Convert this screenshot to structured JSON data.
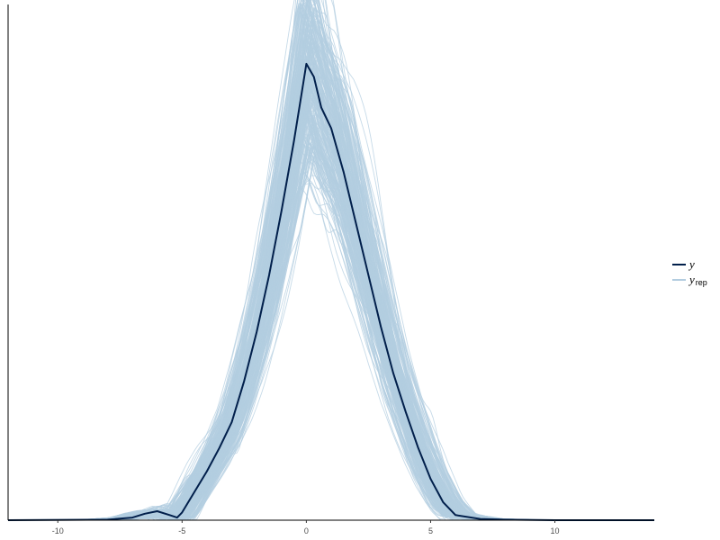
{
  "chart_data": {
    "type": "line",
    "title": "",
    "xlabel": "",
    "ylabel": "",
    "xlim": [
      -12,
      14
    ],
    "ylim": [
      0,
      0.2
    ],
    "x_ticks": [
      -10,
      -5,
      0,
      5,
      10
    ],
    "x_tick_labels": [
      "-10",
      "-5",
      "0",
      "5",
      "10"
    ],
    "y_ticks_shown": false,
    "grid": false,
    "legend_position": "right",
    "series": [
      {
        "name": "y",
        "color": "#011f4b",
        "x": [
          -12,
          -8,
          -7,
          -6.5,
          -6,
          -5.5,
          -5.2,
          -5,
          -4.5,
          -4,
          -3.5,
          -3,
          -2.5,
          -2,
          -1.5,
          -1,
          -0.5,
          -0.2,
          0,
          0.3,
          0.6,
          1,
          1.5,
          2,
          2.5,
          3,
          3.5,
          4,
          4.5,
          5,
          5.5,
          6,
          7,
          8,
          10,
          12,
          14
        ],
        "y": [
          0,
          0.0002,
          0.001,
          0.0025,
          0.0035,
          0.002,
          0.001,
          0.003,
          0.011,
          0.019,
          0.028,
          0.038,
          0.054,
          0.073,
          0.095,
          0.12,
          0.147,
          0.165,
          0.177,
          0.172,
          0.16,
          0.152,
          0.135,
          0.115,
          0.095,
          0.075,
          0.057,
          0.042,
          0.028,
          0.016,
          0.007,
          0.002,
          0.0005,
          0.0002,
          0,
          0,
          0
        ]
      },
      {
        "name": "y rep",
        "color": "#b3cde0",
        "draws": 250
      }
    ]
  },
  "legend": {
    "items": [
      {
        "main": "y",
        "sub": "",
        "color": "#011f4b"
      },
      {
        "main": "y",
        "sub": "rep",
        "color": "#b3cde0"
      }
    ]
  }
}
